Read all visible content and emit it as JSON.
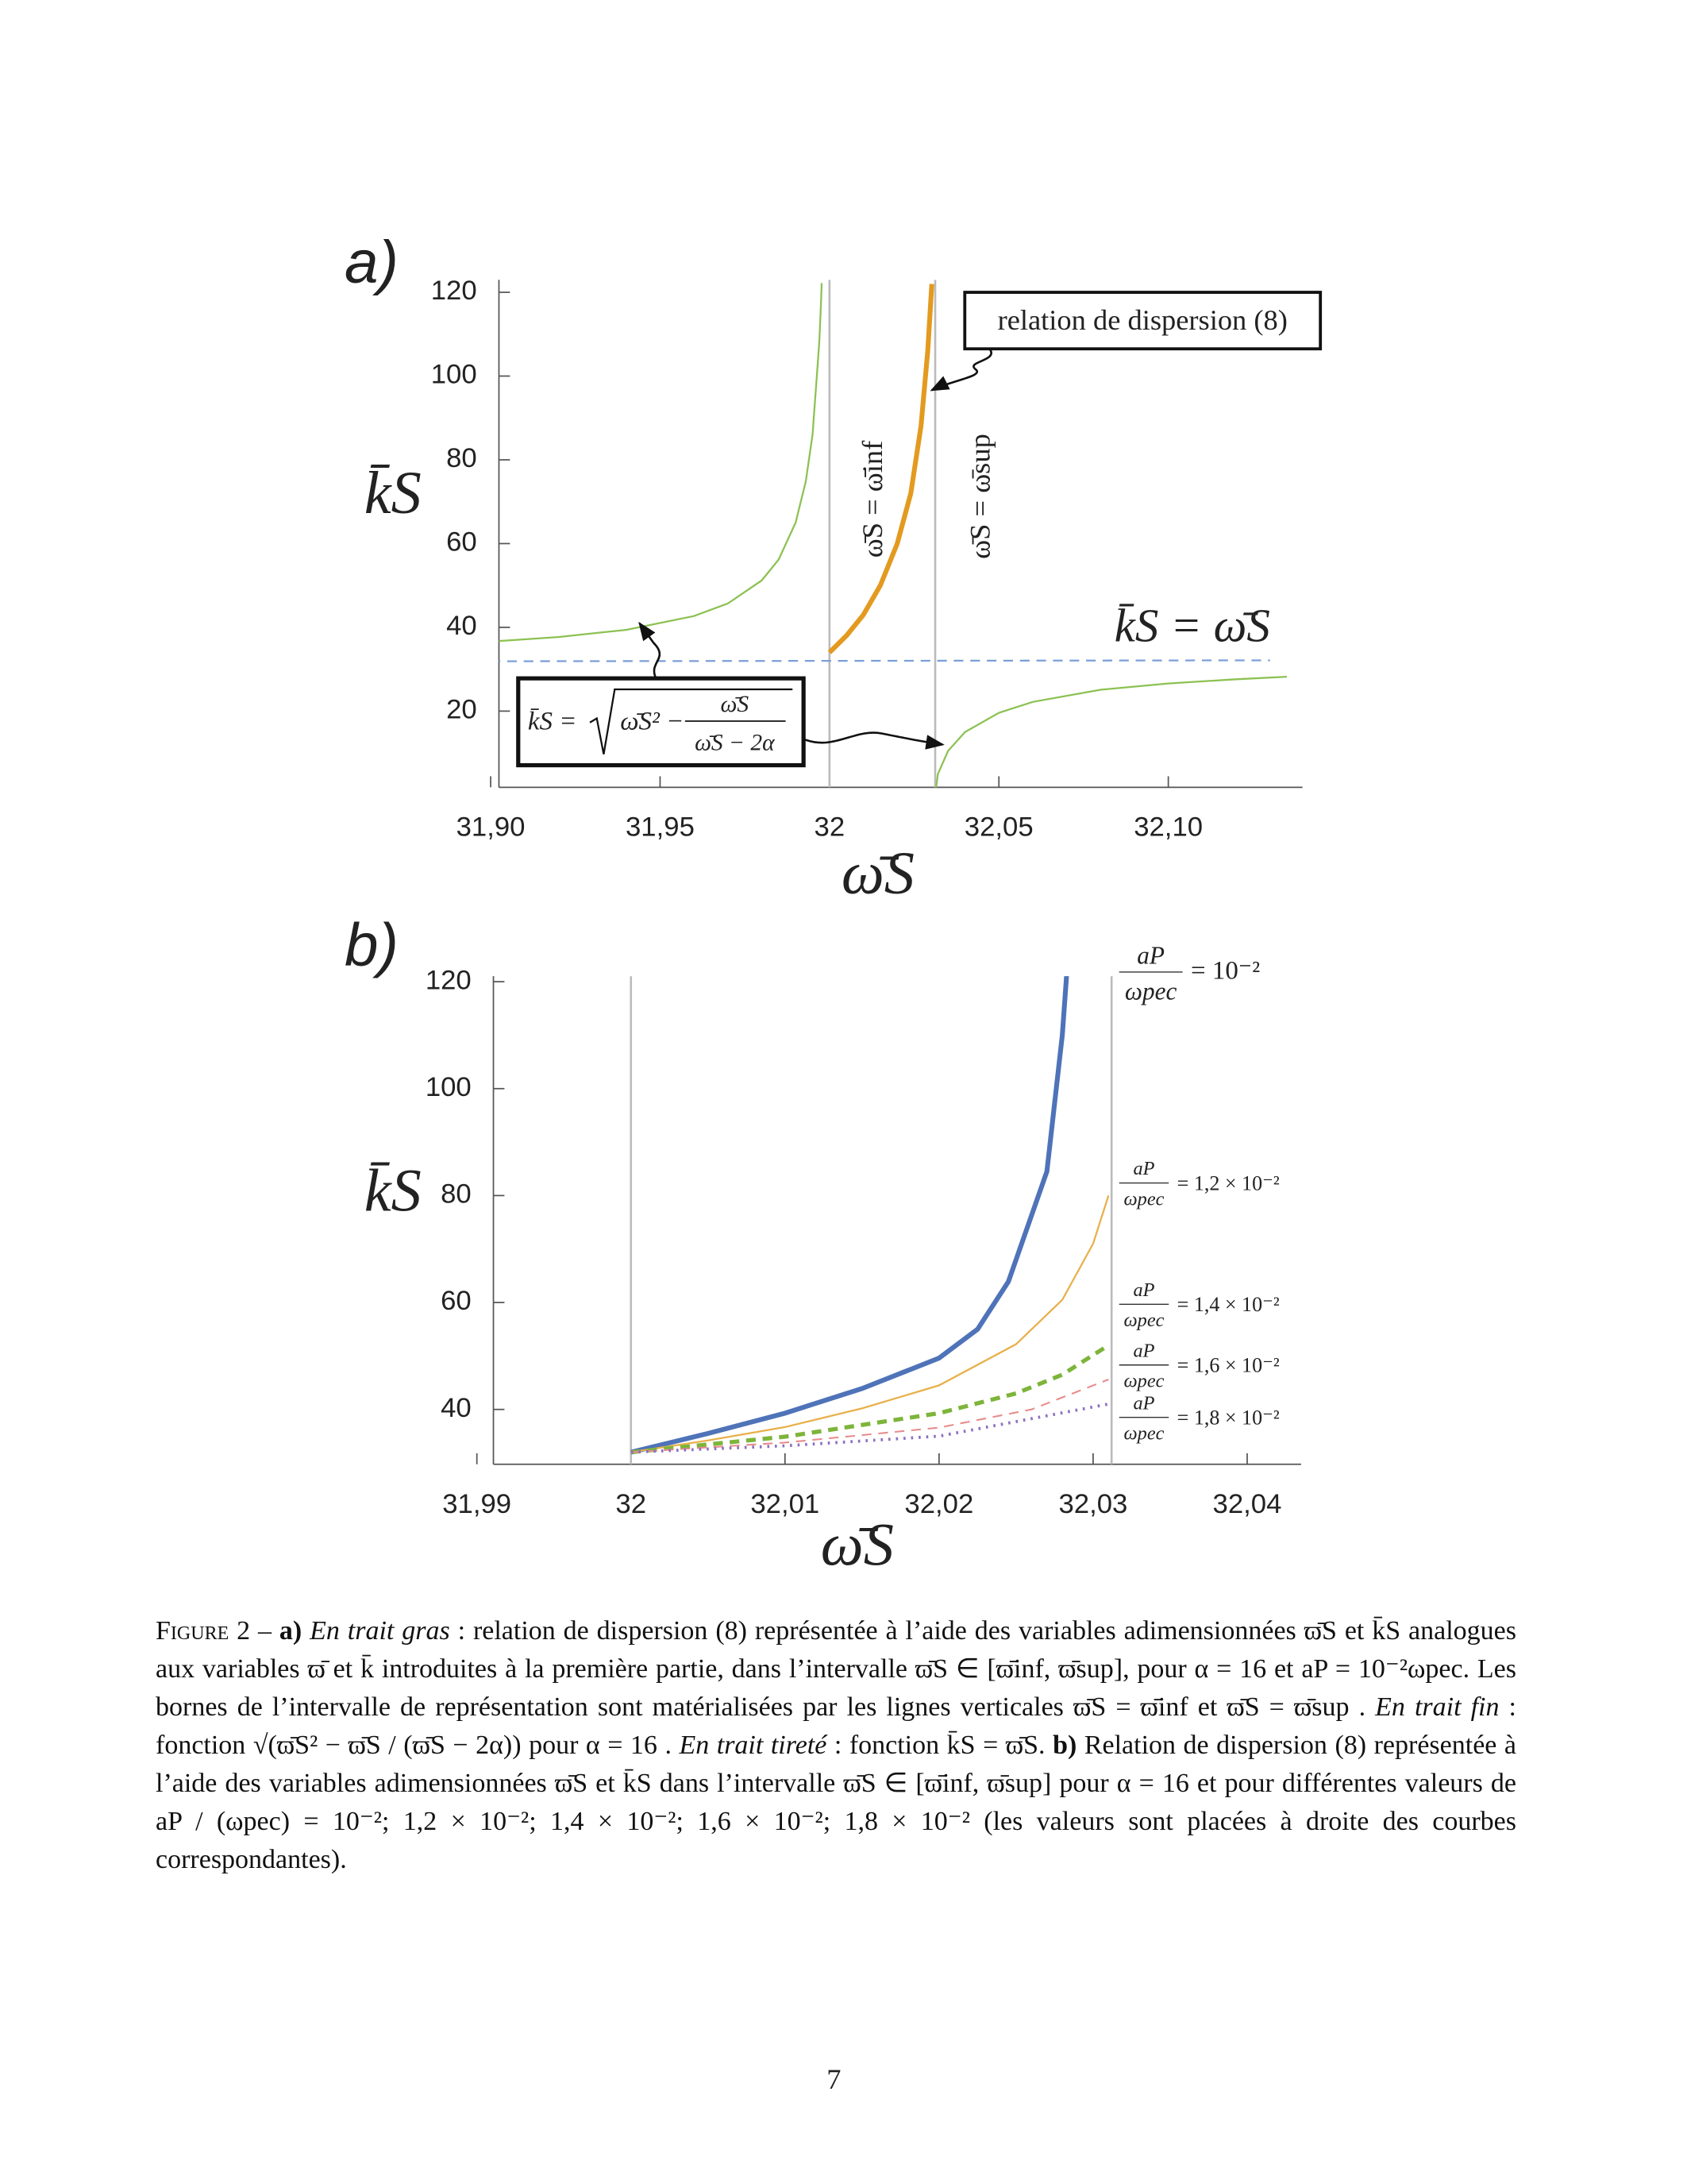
{
  "chart_data": [
    {
      "type": "line",
      "panel_label": "a)",
      "xlabel": "ω̄S",
      "ylabel": "k̄S",
      "xlim": [
        31.9,
        32.14
      ],
      "ylim": [
        0,
        120
      ],
      "xticks": [
        {
          "value": 31.9,
          "label": "31,90"
        },
        {
          "value": 31.95,
          "label": "31,95"
        },
        32,
        {
          "value": 32.05,
          "label": "32,05"
        },
        {
          "value": 32.1,
          "label": "32,10"
        }
      ],
      "yticks": [
        20,
        40,
        60,
        80,
        100,
        120
      ],
      "vlines": [
        32,
        32.0312
      ],
      "vline_color": "#bbbbbb",
      "series": [
        {
          "color": "#8cc152",
          "width": 1.3,
          "dash": "solid",
          "x": [
            31.9,
            31.92,
            31.94,
            31.96,
            31.97,
            31.98,
            31.985,
            31.99,
            31.993,
            31.995,
            31.997,
            31.9975,
            31.9977
          ],
          "values": [
            36.6,
            37.7,
            39.4,
            42.7,
            45.7,
            51.2,
            56.2,
            65.0,
            74.8,
            86.0,
            108.2,
            117.6,
            122.2
          ]
        },
        {
          "color": "#8cc152",
          "width": 1.3,
          "dash": "solid",
          "x": [
            32.0312,
            32.032,
            32.035,
            32.04,
            32.05,
            32.06,
            32.08,
            32.1,
            32.12,
            32.135
          ],
          "values": [
            0,
            5.0,
            10.5,
            15.0,
            19.6,
            22.2,
            25.1,
            26.6,
            27.6,
            28.2
          ]
        },
        {
          "color": "#7b9fd8",
          "width": 1.3,
          "dash": "dashed",
          "x": [
            31.9,
            32.13
          ],
          "values": [
            31.9,
            32.13
          ]
        },
        {
          "color": "#e39a1f",
          "width": 3.5,
          "dash": "solid",
          "x": [
            32,
            32.005,
            32.01,
            32.015,
            32.02,
            32.024,
            32.027,
            32.029,
            32.0302
          ],
          "values": [
            34,
            38,
            43,
            50,
            60,
            72,
            88,
            106,
            122
          ]
        }
      ],
      "annotations": {
        "dispersion": "relation de dispersion (8)",
        "inf": "ω̄S = ω̄inf",
        "sup": "ω̄S = ω̄sup",
        "identity": "k̄S = ω̄S",
        "formula": {
          "lhs": "k̄S =",
          "term": "ω̄S² −",
          "numerator": "ω̄S",
          "denominator": "ω̄S − 2α"
        }
      }
    },
    {
      "type": "line",
      "panel_label": "b)",
      "xlabel": "ω̄S",
      "ylabel": "k̄S",
      "xlim": [
        31.99,
        32.0435
      ],
      "ylim": [
        30,
        120
      ],
      "xticks": [
        {
          "value": 31.99,
          "label": "31,99"
        },
        32,
        {
          "value": 32.01,
          "label": "32,01"
        },
        {
          "value": 32.02,
          "label": "32,02"
        },
        {
          "value": 32.03,
          "label": "32,03"
        },
        {
          "value": 32.04,
          "label": "32,04"
        }
      ],
      "yticks": [
        40,
        60,
        80,
        100,
        120
      ],
      "vlines": [
        32,
        32.0312
      ],
      "vline_color": "#bbbbbb",
      "legend_fraction": {
        "numerator": "aP",
        "denominator": "ωpec"
      },
      "series": [
        {
          "name": "= 10⁻²",
          "color": "#4f73b8",
          "width": 3.5,
          "dash": "solid",
          "x": [
            32,
            32.005,
            32.01,
            32.015,
            32.02,
            32.0225,
            32.0245,
            32.027,
            32.028,
            32.0283
          ],
          "values": [
            32,
            35.5,
            39.3,
            43.9,
            49.6,
            55,
            63.9,
            84.5,
            110,
            122
          ]
        },
        {
          "name": "= 1,2 × 10⁻²",
          "color": "#e8b04a",
          "width": 1.3,
          "dash": "solid",
          "x": [
            32,
            32.005,
            32.01,
            32.015,
            32.02,
            32.025,
            32.028,
            32.03,
            32.031
          ],
          "values": [
            32,
            34.2,
            36.7,
            40.2,
            44.5,
            52.2,
            60.5,
            71,
            80
          ]
        },
        {
          "name": "= 1,4 × 10⁻²",
          "color": "#7db43a",
          "width": 3,
          "dash": "dashed",
          "x": [
            32,
            32.01,
            32.02,
            32.025,
            32.028,
            32.031
          ],
          "values": [
            32,
            34.9,
            39.3,
            43,
            46.5,
            52
          ]
        },
        {
          "name": "= 1,6 × 10⁻²",
          "color": "#e88c8c",
          "width": 1.2,
          "dash": "dashed",
          "x": [
            32,
            32.01,
            32.02,
            32.026,
            32.031
          ],
          "values": [
            32,
            33.8,
            36.6,
            40,
            45.6
          ]
        },
        {
          "name": "= 1,8 × 10⁻²",
          "color": "#8d6fc0",
          "width": 2.2,
          "dash": "dotted",
          "x": [
            32,
            32.01,
            32.02,
            32.031
          ],
          "values": [
            32,
            33.2,
            35,
            41
          ]
        }
      ]
    }
  ],
  "caption": {
    "parts": [
      "Figure 2 – ",
      "a)",
      "En trait gras",
      " : relation de dispersion (8) représentée à l’aide des variables adimensionnées ϖ̄S et k̄S analogues aux variables ϖ̄ et k̄ introduites à la première partie, dans l’intervalle ϖ̄S ∈ [ϖ̄inf, ϖ̄sup], pour α = 16 et aP = 10⁻²ωpec. Les bornes de l’intervalle de représentation sont matérialisées par les lignes verticales ϖ̄S = ϖ̄inf et ϖ̄S = ϖ̄sup . ",
      "En trait fin",
      " : fonction √(ϖ̄S² − ϖ̄S / (ϖ̄S − 2α)) pour α = 16 . ",
      "En trait tireté",
      " : fonction k̄S = ϖ̄S. ",
      "b)",
      " Relation de dispersion (8) représentée à l’aide des variables adimensionnées ϖ̄S et k̄S dans l’intervalle ϖ̄S ∈ [ϖ̄inf, ϖ̄sup] pour α = 16 et pour différentes valeurs de aP / (ωpec) = 10⁻²; 1,2 × 10⁻²; 1,4 × 10⁻²; 1,6 × 10⁻²; 1,8 × 10⁻² (les valeurs sont placées à droite des courbes correspondantes)."
    ]
  },
  "page_number": "7"
}
